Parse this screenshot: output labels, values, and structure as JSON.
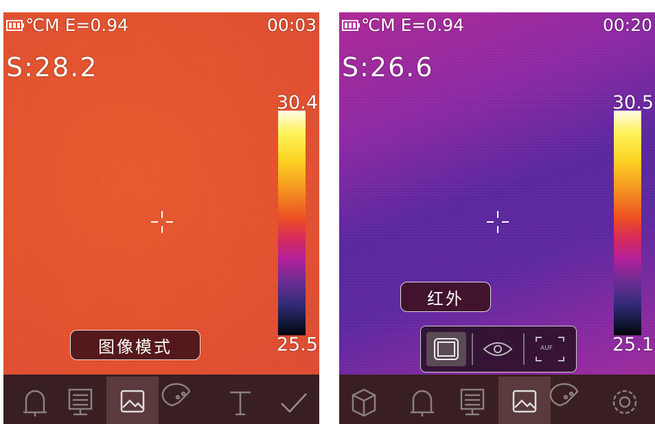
{
  "screens": [
    {
      "status": "℃M E=0.94",
      "time": "00:03",
      "spot": "S:28.2",
      "scale_max": "30.4",
      "scale_min": "25.5",
      "mode_label": "图像模式"
    },
    {
      "status": "℃M E=0.94",
      "time": "00:20",
      "spot": "S:26.6",
      "scale_max": "30.5",
      "scale_min": "25.1",
      "mode_label": "红外",
      "popup_auf": "AUF"
    }
  ]
}
